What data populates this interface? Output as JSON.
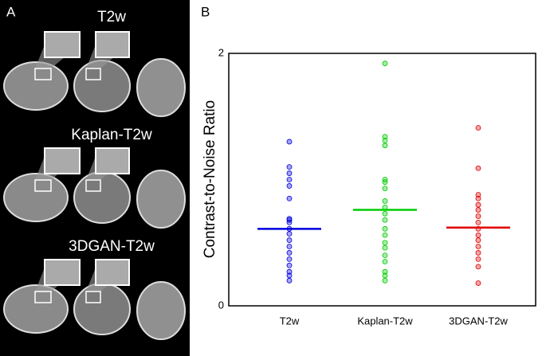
{
  "panels": [
    "A",
    "B"
  ],
  "image_rows": [
    "T2w",
    "Kaplan-T2w",
    "3DGAN-T2w"
  ],
  "chart_data": {
    "type": "strip",
    "ylabel": "Contrast-to-Noise Ratio",
    "categories": [
      "T2w",
      "Kaplan-T2w",
      "3DGAN-T2w"
    ],
    "groups": [
      {
        "color": "#0000dd",
        "mean": 0.61,
        "values": [
          1.3,
          1.1,
          1.05,
          1.0,
          0.95,
          0.85,
          0.69,
          0.68,
          0.66,
          0.61,
          0.57,
          0.52,
          0.47,
          0.42,
          0.37,
          0.32,
          0.27,
          0.24,
          0.2
        ]
      },
      {
        "color": "#00cc00",
        "mean": 0.76,
        "values": [
          1.92,
          1.34,
          1.31,
          1.27,
          1.0,
          0.98,
          0.93,
          0.83,
          0.78,
          0.73,
          0.68,
          0.61,
          0.56,
          0.5,
          0.46,
          0.4,
          0.35,
          0.27,
          0.24,
          0.2
        ]
      },
      {
        "color": "#e00000",
        "mean": 0.62,
        "values": [
          1.41,
          1.09,
          0.88,
          0.85,
          0.8,
          0.76,
          0.71,
          0.66,
          0.61,
          0.56,
          0.52,
          0.47,
          0.42,
          0.37,
          0.31,
          0.18
        ]
      }
    ],
    "ylim": [
      0,
      2
    ],
    "yticks": [
      0,
      2
    ]
  }
}
